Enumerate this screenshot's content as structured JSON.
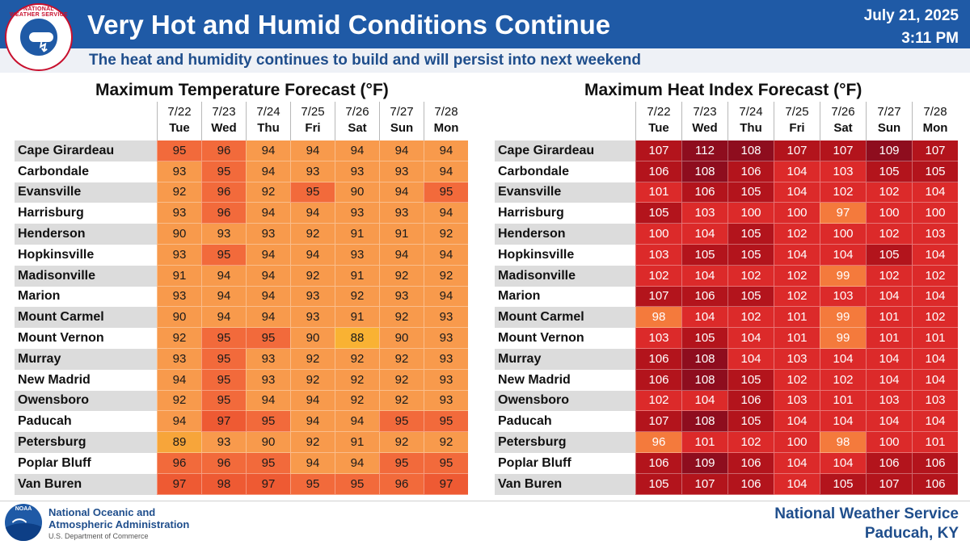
{
  "header": {
    "title": "Very Hot and Humid Conditions Continue",
    "subtitle": "The heat and humidity continues to build and will persist into next weekend",
    "date": "July 21, 2025",
    "time": "3:11 PM",
    "logo_text": "NATIONAL WEATHER SERVICE"
  },
  "days": [
    {
      "date": "7/22",
      "dow": "Tue"
    },
    {
      "date": "7/23",
      "dow": "Wed"
    },
    {
      "date": "7/24",
      "dow": "Thu"
    },
    {
      "date": "7/25",
      "dow": "Fri"
    },
    {
      "date": "7/26",
      "dow": "Sat"
    },
    {
      "date": "7/27",
      "dow": "Sun"
    },
    {
      "date": "7/28",
      "dow": "Mon"
    }
  ],
  "temp_table": {
    "title": "Maximum Temperature Forecast (°F)",
    "rows": [
      {
        "city": "Cape Girardeau",
        "values": [
          95,
          96,
          94,
          94,
          94,
          94,
          94
        ]
      },
      {
        "city": "Carbondale",
        "values": [
          93,
          95,
          94,
          93,
          93,
          93,
          94
        ]
      },
      {
        "city": "Evansville",
        "values": [
          92,
          96,
          92,
          95,
          90,
          94,
          95
        ]
      },
      {
        "city": "Harrisburg",
        "values": [
          93,
          96,
          94,
          94,
          93,
          93,
          94
        ]
      },
      {
        "city": "Henderson",
        "values": [
          90,
          93,
          93,
          92,
          91,
          91,
          92
        ]
      },
      {
        "city": "Hopkinsville",
        "values": [
          93,
          95,
          94,
          94,
          93,
          94,
          94
        ]
      },
      {
        "city": "Madisonville",
        "values": [
          91,
          94,
          94,
          92,
          91,
          92,
          92
        ]
      },
      {
        "city": "Marion",
        "values": [
          93,
          94,
          94,
          93,
          92,
          93,
          94
        ]
      },
      {
        "city": "Mount Carmel",
        "values": [
          90,
          94,
          94,
          93,
          91,
          92,
          93
        ]
      },
      {
        "city": "Mount Vernon",
        "values": [
          92,
          95,
          95,
          90,
          88,
          90,
          93
        ]
      },
      {
        "city": "Murray",
        "values": [
          93,
          95,
          93,
          92,
          92,
          92,
          93
        ]
      },
      {
        "city": "New Madrid",
        "values": [
          94,
          95,
          93,
          92,
          92,
          92,
          93
        ]
      },
      {
        "city": "Owensboro",
        "values": [
          92,
          95,
          94,
          94,
          92,
          92,
          93
        ]
      },
      {
        "city": "Paducah",
        "values": [
          94,
          97,
          95,
          94,
          94,
          95,
          95
        ]
      },
      {
        "city": "Petersburg",
        "values": [
          89,
          93,
          90,
          92,
          91,
          92,
          92
        ]
      },
      {
        "city": "Poplar Bluff",
        "values": [
          96,
          96,
          95,
          94,
          94,
          95,
          95
        ]
      },
      {
        "city": "Van Buren",
        "values": [
          97,
          98,
          97,
          95,
          95,
          96,
          97
        ]
      }
    ]
  },
  "heat_table": {
    "title": "Maximum Heat Index Forecast (°F)",
    "rows": [
      {
        "city": "Cape Girardeau",
        "values": [
          107,
          112,
          108,
          107,
          107,
          109,
          107
        ]
      },
      {
        "city": "Carbondale",
        "values": [
          106,
          108,
          106,
          104,
          103,
          105,
          105
        ]
      },
      {
        "city": "Evansville",
        "values": [
          101,
          106,
          105,
          104,
          102,
          102,
          104
        ]
      },
      {
        "city": "Harrisburg",
        "values": [
          105,
          103,
          100,
          100,
          97,
          100,
          100
        ]
      },
      {
        "city": "Henderson",
        "values": [
          100,
          104,
          105,
          102,
          100,
          102,
          103
        ]
      },
      {
        "city": "Hopkinsville",
        "values": [
          103,
          105,
          105,
          104,
          104,
          105,
          104
        ]
      },
      {
        "city": "Madisonville",
        "values": [
          102,
          104,
          102,
          102,
          99,
          102,
          102
        ]
      },
      {
        "city": "Marion",
        "values": [
          107,
          106,
          105,
          102,
          103,
          104,
          104
        ]
      },
      {
        "city": "Mount Carmel",
        "values": [
          98,
          104,
          102,
          101,
          99,
          101,
          102
        ]
      },
      {
        "city": "Mount Vernon",
        "values": [
          103,
          105,
          104,
          101,
          99,
          101,
          101
        ]
      },
      {
        "city": "Murray",
        "values": [
          106,
          108,
          104,
          103,
          104,
          104,
          104
        ]
      },
      {
        "city": "New Madrid",
        "values": [
          106,
          108,
          105,
          102,
          102,
          104,
          104
        ]
      },
      {
        "city": "Owensboro",
        "values": [
          102,
          104,
          106,
          103,
          101,
          103,
          103
        ]
      },
      {
        "city": "Paducah",
        "values": [
          107,
          108,
          105,
          104,
          104,
          104,
          104
        ]
      },
      {
        "city": "Petersburg",
        "values": [
          96,
          101,
          102,
          100,
          98,
          100,
          101
        ]
      },
      {
        "city": "Poplar Bluff",
        "values": [
          106,
          109,
          106,
          104,
          104,
          106,
          106
        ]
      },
      {
        "city": "Van Buren",
        "values": [
          105,
          107,
          106,
          104,
          105,
          107,
          106
        ]
      }
    ]
  },
  "colors": {
    "temp_88": "#f9b233",
    "temp_89": "#f7a53a",
    "temp_90_94": "#f89a4c",
    "temp_95_96": "#f26a3b",
    "temp_97_98": "#ee5a33",
    "hi_96_99": "#f47a3c",
    "hi_100_104": "#dc2a2a",
    "hi_105_107": "#b3141c",
    "hi_108_plus": "#8e0d1e",
    "header_blue": "#1f5aa6"
  },
  "footer": {
    "noaa_line1": "National Oceanic and",
    "noaa_line2": "Atmospheric Administration",
    "noaa_dept": "U.S. Department of Commerce",
    "noaa_logo_text": "NOAA",
    "nws_line1": "National Weather Service",
    "nws_line2": "Paducah, KY"
  }
}
